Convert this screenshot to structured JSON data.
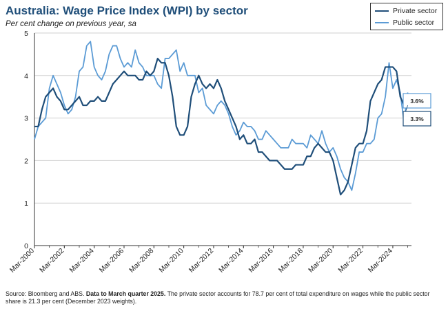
{
  "title": "Australia: Wage Price Index (WPI) by sector",
  "subtitle": "Per cent change on previous year, sa",
  "source": {
    "prefix": "Source: Bloomberg and ABS.",
    "bold": "Data to March quarter 2025.",
    "rest": "The private sector accounts for 78.7 per cent of total expenditure on wages while the public sector share is 21.3 per cent (December 2023 weights)."
  },
  "colors": {
    "private": "#1f4e79",
    "public": "#5b9bd5",
    "grid": "#cfcfcf",
    "axis": "#333333"
  },
  "chart_data": {
    "type": "line",
    "title": "Australia: Wage Price Index (WPI) by sector",
    "subtitle": "Per cent change on previous year, sa",
    "xlabel": "",
    "ylabel": "",
    "ylim": [
      0,
      5
    ],
    "yticks": [
      "0",
      "1",
      "2",
      "3",
      "4",
      "5"
    ],
    "xticks": [
      "Mar-2000",
      "Mar-2002",
      "Mar-2004",
      "Mar-2006",
      "Mar-2008",
      "Mar-2010",
      "Mar-2012",
      "Mar-2014",
      "Mar-2016",
      "Mar-2018",
      "Mar-2020",
      "Mar-2022",
      "Mar-2024"
    ],
    "x_start": "Mar-2000",
    "frequency": "quarterly",
    "grid": "horizontal",
    "legend_position": "top-right",
    "series": [
      {
        "name": "Private sector",
        "color": "#1f4e79",
        "last_value_label": "3.3%",
        "values": [
          2.8,
          2.8,
          3.2,
          3.5,
          3.6,
          3.7,
          3.5,
          3.4,
          3.2,
          3.2,
          3.3,
          3.4,
          3.5,
          3.3,
          3.3,
          3.4,
          3.4,
          3.5,
          3.4,
          3.4,
          3.6,
          3.8,
          3.9,
          4.0,
          4.1,
          4.0,
          4.0,
          4.0,
          3.9,
          3.9,
          4.1,
          4.0,
          4.1,
          4.4,
          4.3,
          4.3,
          4.0,
          3.5,
          2.8,
          2.6,
          2.6,
          2.8,
          3.5,
          3.8,
          4.0,
          3.8,
          3.7,
          3.8,
          3.7,
          3.9,
          3.7,
          3.4,
          3.2,
          3.0,
          2.8,
          2.5,
          2.6,
          2.4,
          2.4,
          2.5,
          2.2,
          2.2,
          2.1,
          2.0,
          2.0,
          2.0,
          1.9,
          1.8,
          1.8,
          1.8,
          1.9,
          1.9,
          1.9,
          2.1,
          2.1,
          2.3,
          2.4,
          2.3,
          2.2,
          2.2,
          2.0,
          1.6,
          1.2,
          1.3,
          1.5,
          1.9,
          2.3,
          2.4,
          2.4,
          2.7,
          3.4,
          3.6,
          3.8,
          3.9,
          4.2,
          4.2,
          4.2,
          4.1,
          3.5,
          3.3,
          3.3
        ]
      },
      {
        "name": "Public sector",
        "color": "#5b9bd5",
        "last_value_label": "3.6%",
        "values": [
          2.5,
          2.8,
          2.9,
          3.0,
          3.7,
          4.0,
          3.8,
          3.6,
          3.3,
          3.1,
          3.2,
          3.5,
          4.1,
          4.2,
          4.7,
          4.8,
          4.2,
          4.0,
          3.9,
          4.1,
          4.5,
          4.7,
          4.7,
          4.4,
          4.2,
          4.3,
          4.2,
          4.6,
          4.3,
          4.2,
          4.0,
          4.0,
          4.0,
          3.8,
          3.7,
          4.4,
          4.4,
          4.5,
          4.6,
          4.1,
          4.3,
          4.0,
          4.0,
          4.0,
          3.6,
          3.7,
          3.3,
          3.2,
          3.1,
          3.3,
          3.4,
          3.3,
          3.1,
          2.8,
          2.6,
          2.7,
          2.9,
          2.8,
          2.8,
          2.7,
          2.5,
          2.5,
          2.7,
          2.6,
          2.5,
          2.4,
          2.3,
          2.3,
          2.3,
          2.5,
          2.4,
          2.4,
          2.4,
          2.3,
          2.6,
          2.5,
          2.4,
          2.7,
          2.4,
          2.2,
          2.3,
          2.1,
          1.8,
          1.6,
          1.5,
          1.3,
          1.7,
          2.2,
          2.2,
          2.4,
          2.4,
          2.5,
          3.0,
          3.1,
          3.5,
          4.3,
          3.7,
          3.9,
          3.6,
          2.9,
          3.6
        ]
      }
    ]
  }
}
